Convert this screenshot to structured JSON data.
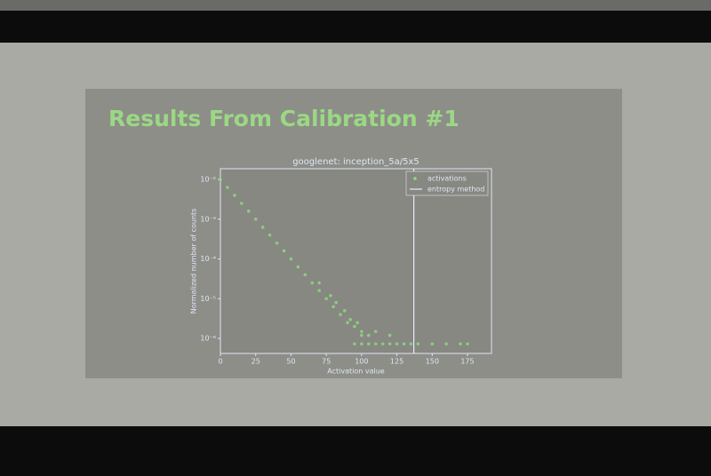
{
  "slide_title": "Results From Calibration #1",
  "chart_data": {
    "type": "scatter",
    "title": "googlenet: inception_5a/5x5",
    "x_label": "Activation value",
    "y_label": "Normalized number of counts",
    "log_y": true,
    "legend": "upper right",
    "xlim": [
      0,
      192
    ],
    "ylim": [
      4.2e-07,
      0.0186
    ],
    "xticks": [
      0,
      25,
      50,
      75,
      100,
      125,
      150,
      175
    ],
    "yticks": [
      {
        "value": 0.01,
        "label": "10⁻²"
      },
      {
        "value": 0.001,
        "label": "10⁻³"
      },
      {
        "value": 0.0001,
        "label": "10⁻⁴"
      },
      {
        "value": 1e-05,
        "label": "10⁻⁵"
      },
      {
        "value": 1e-06,
        "label": "10⁻⁶"
      }
    ],
    "series": [
      {
        "name": "activations",
        "color": "#8fdc7f",
        "x": [
          0,
          5,
          10,
          15,
          20,
          25,
          30,
          35,
          40,
          45,
          50,
          55,
          60,
          65,
          70,
          75,
          80,
          85,
          90,
          95,
          100,
          105,
          70,
          78,
          82,
          88,
          92,
          97,
          95,
          100,
          105,
          110,
          115,
          120,
          125,
          130,
          135,
          140,
          150,
          160,
          170,
          175,
          100,
          110,
          120
        ],
        "values": [
          0.01,
          0.0063,
          0.004,
          0.0025,
          0.0016,
          0.001,
          0.00063,
          0.0004,
          0.00025,
          0.00016,
          0.0001,
          6.3e-05,
          4e-05,
          2.5e-05,
          1.6e-05,
          1e-05,
          6.3e-06,
          4e-06,
          2.5e-06,
          2e-06,
          1.5e-06,
          1.2e-06,
          2.5e-05,
          1.2e-05,
          8e-06,
          5e-06,
          3e-06,
          2.5e-06,
          7.3e-07,
          7.3e-07,
          7.3e-07,
          7.3e-07,
          7.3e-07,
          7.3e-07,
          7.3e-07,
          7.3e-07,
          7.3e-07,
          7.3e-07,
          7.3e-07,
          7.3e-07,
          7.3e-07,
          7.3e-07,
          1.2e-06,
          1.5e-06,
          1.2e-06
        ]
      }
    ],
    "vline": {
      "name": "entropy method",
      "x": 137,
      "color": "#e4ebff"
    }
  }
}
